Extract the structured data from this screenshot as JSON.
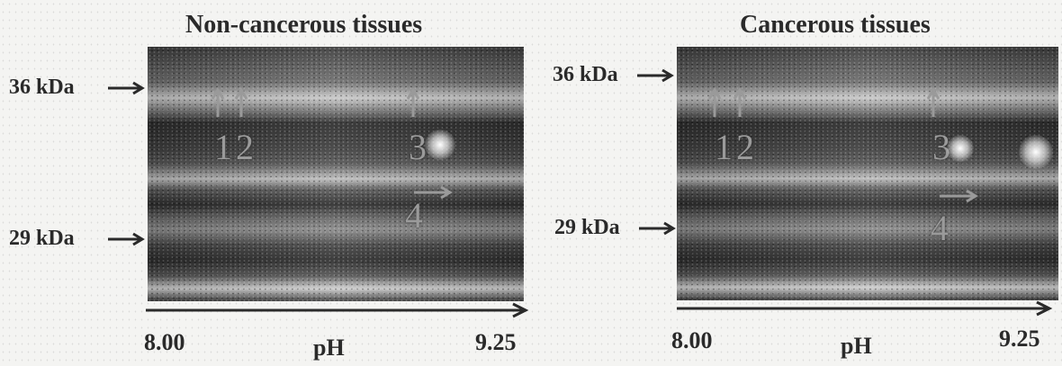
{
  "panels": [
    {
      "title": "Non-cancerous tissues",
      "mw_top": "36 kDa",
      "mw_bottom": "29 kDa",
      "spots": [
        "1",
        "2",
        "3",
        "4"
      ],
      "ph_start": "8.00",
      "ph_label": "pH",
      "ph_end": "9.25"
    },
    {
      "title": "Cancerous tissues",
      "mw_top": "36 kDa",
      "mw_bottom": "29 kDa",
      "spots": [
        "1",
        "2",
        "3",
        "4"
      ],
      "ph_start": "8.00",
      "ph_label": "pH",
      "ph_end": "9.25"
    }
  ],
  "colors": {
    "text": "#2a2a2a",
    "gel_dark": "#2b2b2b",
    "gel_light": "#cfcfcf",
    "spot": "#9a9a9a"
  }
}
